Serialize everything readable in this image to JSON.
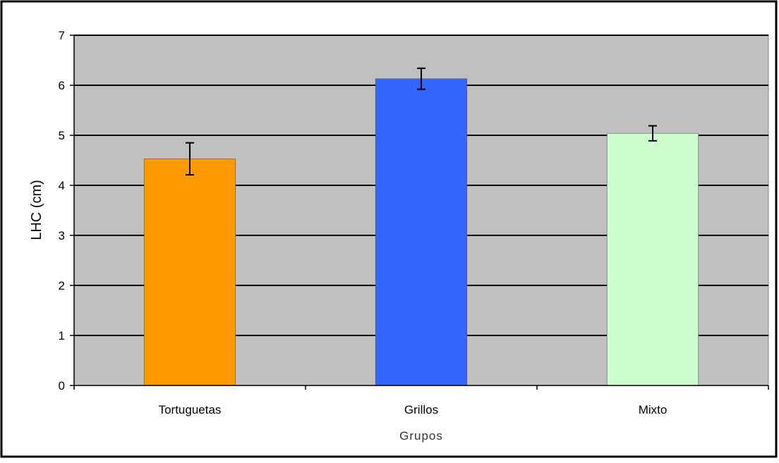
{
  "chart_data": {
    "type": "bar",
    "title": "",
    "xlabel": "Grupos",
    "ylabel": "LHC (cm)",
    "ylim": [
      0,
      7
    ],
    "yticks": [
      0,
      1,
      2,
      3,
      4,
      5,
      6,
      7
    ],
    "categories": [
      "Tortuguetas",
      "Grillos",
      "Mixto"
    ],
    "values": [
      4.53,
      6.13,
      5.04
    ],
    "error": [
      0.32,
      0.21,
      0.15
    ],
    "colors": [
      "#ff9900",
      "#3366ff",
      "#ccffcc"
    ],
    "plot_background": "#c0c0c0",
    "grid": true,
    "legend": "none"
  }
}
